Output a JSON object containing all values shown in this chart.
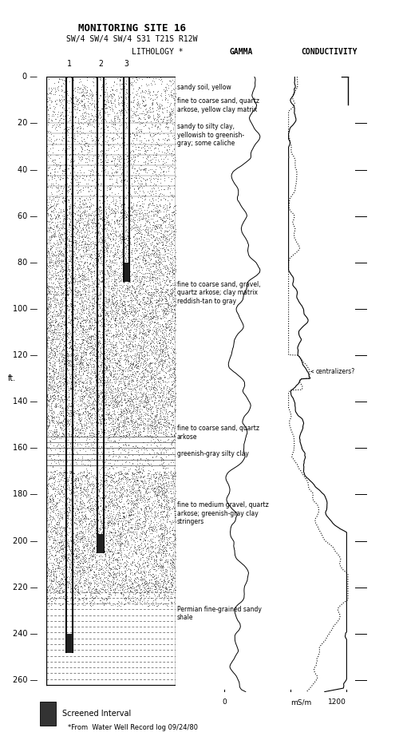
{
  "title": "MONITORING SITE 16",
  "subtitle": "SW/4 SW/4 SW/4 S31 T21S R12W",
  "depth_min": 0,
  "depth_max": 265,
  "depth_ticks": [
    0,
    20,
    40,
    60,
    80,
    100,
    120,
    140,
    160,
    180,
    200,
    220,
    240,
    260
  ],
  "ft_label_depth": 130,
  "lithology_notes": [
    {
      "depth": 3,
      "text": "sandy soil, yellow"
    },
    {
      "depth": 9,
      "text": "fine to coarse sand, quartz\narkose, yellow clay matrix"
    },
    {
      "depth": 20,
      "text": "sandy to silty clay,\nyellowish to greenish-\ngray; some caliche"
    },
    {
      "depth": 88,
      "text": "fine to coarse sand, gravel,\nquartz arkose; clay matrix\nreddish-tan to gray"
    },
    {
      "depth": 150,
      "text": "fine to coarse sand, quartz\narkose"
    },
    {
      "depth": 161,
      "text": "greenish-gray silty clay"
    },
    {
      "depth": 183,
      "text": "fine to medium gravel, quartz\narkose; greenish-gray clay\nstringers"
    },
    {
      "depth": 228,
      "text": "Permian fine-grained sandy\nshale"
    }
  ],
  "bg_color": "#ffffff",
  "footer": "*From  Water Well Record log 09/24/80"
}
